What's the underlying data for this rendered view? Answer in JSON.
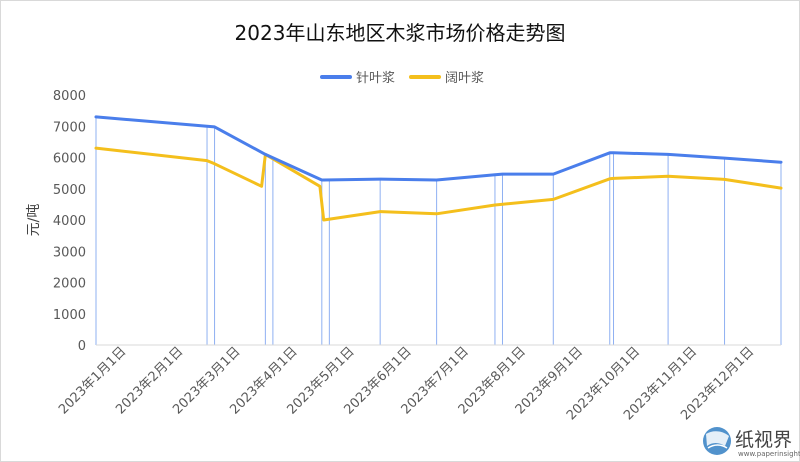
{
  "chart_data": {
    "type": "line",
    "title": "2023年山东地区木浆市场价格走势图",
    "xlabel": "",
    "ylabel": "元/吨",
    "ylim": [
      0,
      8000
    ],
    "yticks": [
      0,
      1000,
      2000,
      3000,
      4000,
      5000,
      6000,
      7000,
      8000
    ],
    "grid": false,
    "legend_position": "top-center",
    "categories": [
      "2023年1月1日",
      "2023年2月1日",
      "2023年3月1日",
      "2023年4月1日",
      "2023年5月1日",
      "2023年6月1日",
      "2023年7月1日",
      "2023年8月1日",
      "2023年9月1日",
      "2023年10月1日",
      "2023年11月1日",
      "2023年12月1日"
    ],
    "series": [
      {
        "name": "针叶浆",
        "color": "#4A7EEB",
        "points": [
          {
            "x": "2023-01-01",
            "y": 7300
          },
          {
            "x": "2023-03-01",
            "y": 7000
          },
          {
            "x": "2023-03-05",
            "y": 6980
          },
          {
            "x": "2023-04-01",
            "y": 6100
          },
          {
            "x": "2023-05-01",
            "y": 5280
          },
          {
            "x": "2023-05-02",
            "y": 5280
          },
          {
            "x": "2023-06-01",
            "y": 5310
          },
          {
            "x": "2023-07-01",
            "y": 5280
          },
          {
            "x": "2023-08-01",
            "y": 5450
          },
          {
            "x": "2023-08-05",
            "y": 5470
          },
          {
            "x": "2023-09-01",
            "y": 5470
          },
          {
            "x": "2023-10-01",
            "y": 6150
          },
          {
            "x": "2023-10-03",
            "y": 6150
          },
          {
            "x": "2023-11-01",
            "y": 6100
          },
          {
            "x": "2023-12-01",
            "y": 5980
          },
          {
            "x": "2023-12-31",
            "y": 5850
          }
        ]
      },
      {
        "name": "阔叶浆",
        "color": "#F4BF1C",
        "points": [
          {
            "x": "2023-01-01",
            "y": 6300
          },
          {
            "x": "2023-03-01",
            "y": 5900
          },
          {
            "x": "2023-03-05",
            "y": 5800
          },
          {
            "x": "2023-03-30",
            "y": 5080
          },
          {
            "x": "2023-04-01",
            "y": 6100
          },
          {
            "x": "2023-04-30",
            "y": 5080
          },
          {
            "x": "2023-05-02",
            "y": 4000
          },
          {
            "x": "2023-06-01",
            "y": 4270
          },
          {
            "x": "2023-07-01",
            "y": 4200
          },
          {
            "x": "2023-08-01",
            "y": 4480
          },
          {
            "x": "2023-09-01",
            "y": 4660
          },
          {
            "x": "2023-10-01",
            "y": 5320
          },
          {
            "x": "2023-10-03",
            "y": 5330
          },
          {
            "x": "2023-11-01",
            "y": 5400
          },
          {
            "x": "2023-12-01",
            "y": 5300
          },
          {
            "x": "2023-12-31",
            "y": 5020
          }
        ]
      }
    ],
    "drop_lines": [
      "2023-01-01",
      "2023-03-01",
      "2023-03-05",
      "2023-04-01",
      "2023-04-05",
      "2023-05-01",
      "2023-05-05",
      "2023-06-01",
      "2023-07-01",
      "2023-08-01",
      "2023-08-05",
      "2023-09-01",
      "2023-10-01",
      "2023-10-03",
      "2023-11-01",
      "2023-12-01",
      "2023-12-31"
    ],
    "x_start": "2023-01-01",
    "x_end": "2023-12-31"
  },
  "watermark": {
    "text": "纸视界",
    "url": "www.paperinsight.net",
    "icon": "paper-globe-icon",
    "color": "#3E86C6"
  }
}
